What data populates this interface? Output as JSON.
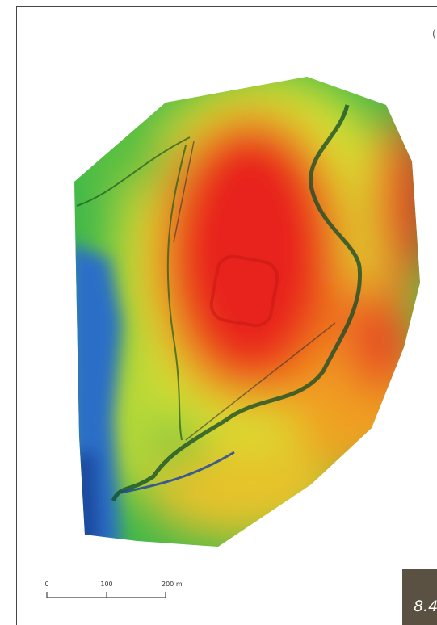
{
  "scale_bar": {
    "labels": [
      "0",
      "100",
      "200 m"
    ]
  },
  "figure_label": "8.4"
}
